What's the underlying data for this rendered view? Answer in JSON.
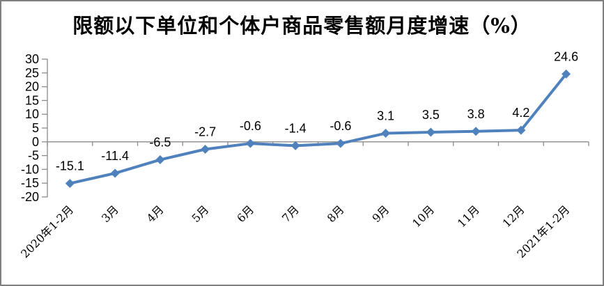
{
  "frame": {
    "background_color": "#ffffff",
    "border_color": "#808080"
  },
  "chart_data": {
    "type": "line",
    "title": "限额以下单位和个体户商品零售额月度增速（%）",
    "categories": [
      "2020年1-2月",
      "3月",
      "4月",
      "5月",
      "6月",
      "7月",
      "8月",
      "9月",
      "10月",
      "11月",
      "12月",
      "2021年1-2月"
    ],
    "values": [
      -15.1,
      -11.4,
      -6.5,
      -2.7,
      -0.6,
      -1.4,
      -0.6,
      3.1,
      3.5,
      3.8,
      4.2,
      24.6
    ],
    "data_labels": [
      "-15.1",
      "-11.4",
      "-6.5",
      "-2.7",
      "-0.6",
      "-1.4",
      "-0.6",
      "3.1",
      "3.5",
      "3.8",
      "4.2",
      "24.6"
    ],
    "xlabel": "",
    "ylabel": "",
    "ylim": [
      -20,
      30
    ],
    "ytick_step": 5,
    "ytick_labels": [
      "30",
      "25",
      "20",
      "15",
      "10",
      "5",
      "0",
      "-5",
      "-10",
      "-15",
      "-20"
    ],
    "grid": false,
    "legend_position": "none",
    "x_label_rotation_deg": 45,
    "marker_shape": "diamond",
    "line_color": "#4F81BD",
    "marker_color": "#4F81BD",
    "axis_color": "#8a8a8a",
    "text_color": "#000000"
  }
}
